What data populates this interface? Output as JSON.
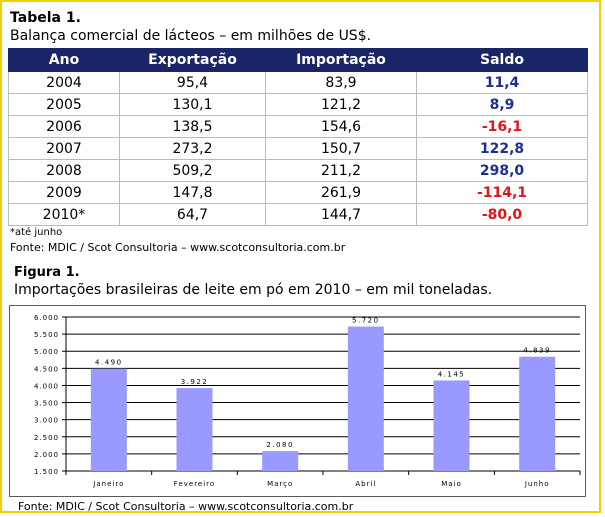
{
  "table": {
    "title": "Tabela 1.",
    "subtitle": "Balança comercial de lácteos – em milhões de US$.",
    "headers": [
      "Ano",
      "Exportação",
      "Importação",
      "Saldo"
    ],
    "rows": [
      {
        "ano": "2004",
        "exportacao": "95,4",
        "importacao": "83,9",
        "saldo": "11,4",
        "sign": "pos"
      },
      {
        "ano": "2005",
        "exportacao": "130,1",
        "importacao": "121,2",
        "saldo": "8,9",
        "sign": "pos"
      },
      {
        "ano": "2006",
        "exportacao": "138,5",
        "importacao": "154,6",
        "saldo": "-16,1",
        "sign": "neg"
      },
      {
        "ano": "2007",
        "exportacao": "273,2",
        "importacao": "150,7",
        "saldo": "122,8",
        "sign": "pos"
      },
      {
        "ano": "2008",
        "exportacao": "509,2",
        "importacao": "211,2",
        "saldo": "298,0",
        "sign": "pos"
      },
      {
        "ano": "2009",
        "exportacao": "147,8",
        "importacao": "261,9",
        "saldo": "-114,1",
        "sign": "neg"
      },
      {
        "ano": "2010*",
        "exportacao": "64,7",
        "importacao": "144,7",
        "saldo": "-80,0",
        "sign": "neg"
      }
    ],
    "note": "*até junho",
    "source": "Fonte: MDIC / Scot Consultoria – www.scotconsultoria.com.br"
  },
  "figure": {
    "title": "Figura 1.",
    "subtitle": "Importações brasileiras de leite em pó em 2010 – em mil toneladas.",
    "source": "Fonte: MDIC / Scot Consultoria – www.scotconsultoria.com.br"
  },
  "colors": {
    "header_bg": "#1a2568",
    "positive": "#1e2f92",
    "negative": "#e0141a",
    "bar": "#9999ff",
    "frame": "#f4d000"
  },
  "chart_data": {
    "type": "bar",
    "categories": [
      "Janeiro",
      "Fevereiro",
      "Março",
      "Abril",
      "Maio",
      "Junho"
    ],
    "values": [
      4490,
      3922,
      2080,
      5720,
      4145,
      4839
    ],
    "value_labels": [
      "4.490",
      "3.922",
      "2.080",
      "5.720",
      "4.145",
      "4.839"
    ],
    "ylim": [
      1500,
      6000
    ],
    "yticks": [
      1500,
      2000,
      2500,
      3000,
      3500,
      4000,
      4500,
      5000,
      5500,
      6000
    ],
    "ytick_labels": [
      "1.500",
      "2.000",
      "2.500",
      "3.000",
      "3.500",
      "4.000",
      "4.500",
      "5.000",
      "5.500",
      "6.000"
    ],
    "grid": true,
    "legend": false
  }
}
